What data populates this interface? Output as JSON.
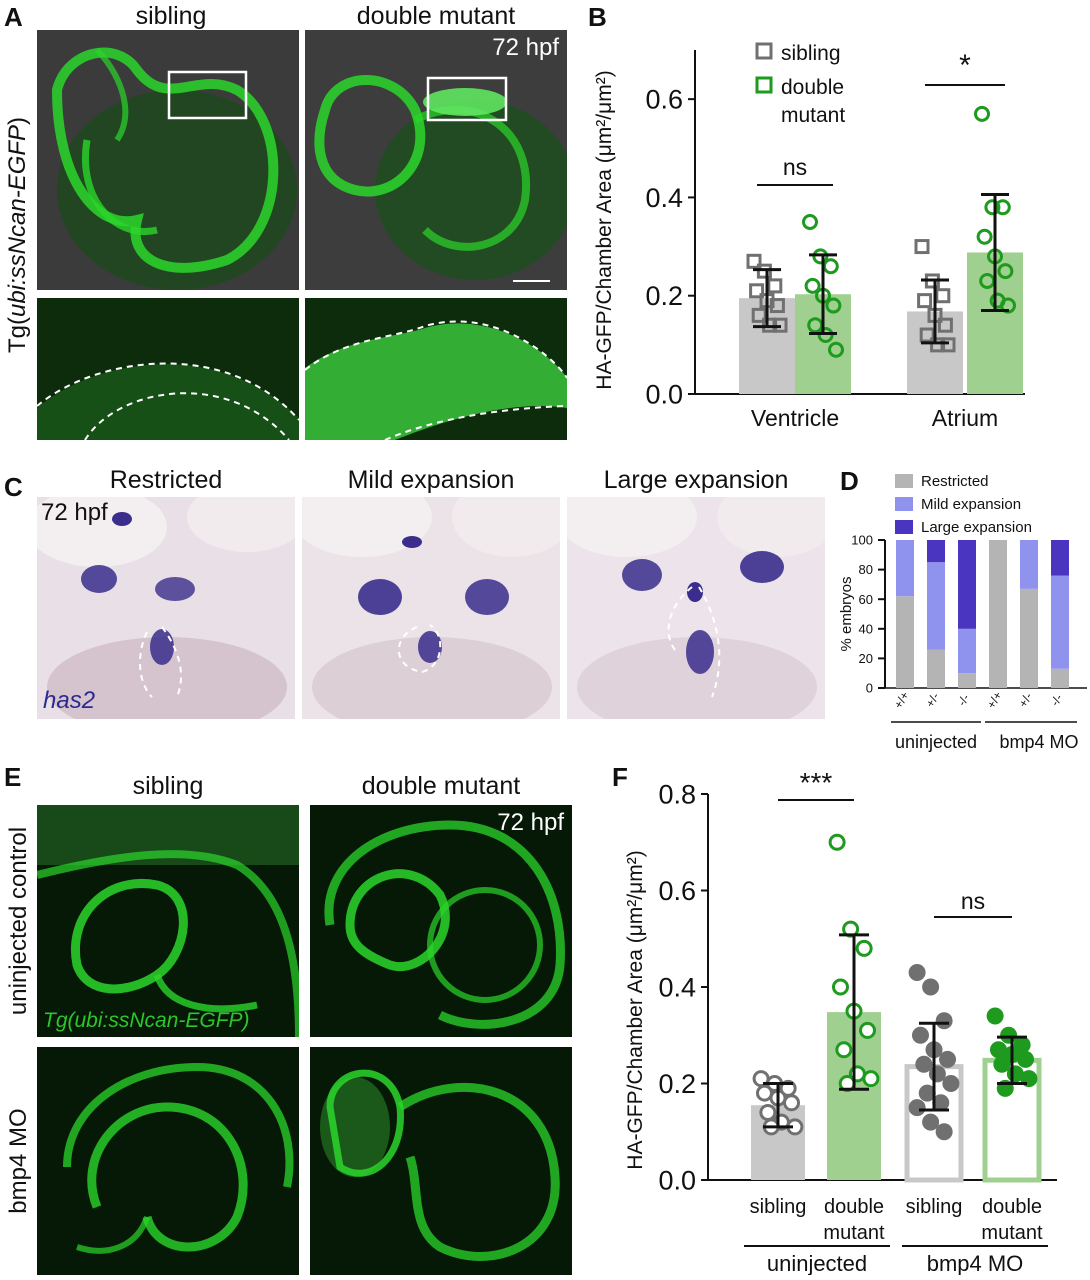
{
  "figure": {
    "panels": {
      "A": {
        "label": "A",
        "col_titles": [
          "sibling",
          "double mutant"
        ],
        "stage": "72 hpf",
        "side_label_prefix": "Tg(",
        "side_label_main": "ubi:ssNcan-EGFP",
        "side_label_suffix": ")"
      },
      "B": {
        "label": "B"
      },
      "C": {
        "label": "C",
        "col_titles": [
          "Restricted",
          "Mild expansion",
          "Large expansion"
        ],
        "stage": "72 hpf",
        "gene": "has2"
      },
      "D": {
        "label": "D"
      },
      "E": {
        "label": "E",
        "col_titles": [
          "sibling",
          "double mutant"
        ],
        "row_titles": [
          "uninjected control",
          "bmp4 MO"
        ],
        "stage": "72 hpf",
        "transgene": "Tg(ubi:ssNcan-EGFP)"
      },
      "F": {
        "label": "F"
      }
    },
    "colors": {
      "grey_bar": "#c8c8c8",
      "green_bar": "#9fd090",
      "grey_point": "#707070",
      "green_point": "#1e9a1e",
      "restricted": "#b4b4b4",
      "mild": "#8f93ee",
      "large": "#4a35c0",
      "gfp": "#2bd62b",
      "ish": "#3a2d8c"
    }
  },
  "chart_data": [
    {
      "id": "B",
      "type": "bar",
      "ylabel": "HA-GFP/Chamber Area (μm²/μm²)",
      "ylim": [
        0.0,
        0.7
      ],
      "yticks": [
        "0.0",
        "0.2",
        "0.4",
        "0.6"
      ],
      "categories": [
        "Ventricle",
        "Atrium"
      ],
      "legend": [
        "sibling",
        "double mutant"
      ],
      "legend_lines": [
        "sibling",
        "double",
        "mutant"
      ],
      "series": [
        {
          "name": "sibling",
          "means": [
            0.195,
            0.168
          ],
          "sd": [
            0.058,
            0.064
          ],
          "points": [
            [
              0.27,
              0.25,
              0.22,
              0.21,
              0.19,
              0.18,
              0.16,
              0.14,
              0.14
            ],
            [
              0.3,
              0.23,
              0.2,
              0.19,
              0.16,
              0.14,
              0.12,
              0.1,
              0.1
            ]
          ]
        },
        {
          "name": "double mutant",
          "means": [
            0.203,
            0.288
          ],
          "sd": [
            0.08,
            0.118
          ],
          "points": [
            [
              0.35,
              0.28,
              0.26,
              0.22,
              0.2,
              0.18,
              0.14,
              0.12,
              0.09
            ],
            [
              0.57,
              0.38,
              0.38,
              0.32,
              0.28,
              0.25,
              0.23,
              0.19,
              0.18
            ]
          ]
        }
      ],
      "significance": [
        "ns",
        "*"
      ]
    },
    {
      "id": "D",
      "type": "bar",
      "stacked": true,
      "ylabel": "% embryos",
      "ylim": [
        0,
        100
      ],
      "yticks": [
        "0",
        "20",
        "40",
        "60",
        "80",
        "100"
      ],
      "categories": [
        "+/+",
        "+/-",
        "-/-",
        "+/+",
        "+/-",
        "-/-"
      ],
      "groups": [
        "uninjected",
        "bmp4 MO"
      ],
      "legend": [
        "Restricted",
        "Mild expansion",
        "Large expansion"
      ],
      "series": [
        {
          "name": "Restricted",
          "values": [
            62,
            26,
            10,
            100,
            67,
            13
          ]
        },
        {
          "name": "Mild expansion",
          "values": [
            38,
            59,
            30,
            0,
            33,
            63
          ]
        },
        {
          "name": "Large expansion",
          "values": [
            0,
            15,
            60,
            0,
            0,
            24
          ]
        }
      ]
    },
    {
      "id": "F",
      "type": "bar",
      "ylabel": "HA-GFP/Chamber Area (μm²/μm²)",
      "ylim": [
        0.0,
        0.8
      ],
      "yticks": [
        "0.0",
        "0.2",
        "0.4",
        "0.6",
        "0.8"
      ],
      "categories": [
        "sibling",
        "double mutant",
        "sibling",
        "double mutant"
      ],
      "category_lines": [
        [
          "sibling"
        ],
        [
          "double",
          "mutant"
        ],
        [
          "sibling"
        ],
        [
          "double",
          "mutant"
        ]
      ],
      "groups": [
        "uninjected",
        "bmp4 MO"
      ],
      "means": [
        0.155,
        0.348,
        0.235,
        0.248
      ],
      "sd": [
        0.045,
        0.16,
        0.09,
        0.048
      ],
      "points": [
        [
          0.21,
          0.2,
          0.19,
          0.18,
          0.17,
          0.16,
          0.14,
          0.12,
          0.11,
          0.11
        ],
        [
          0.7,
          0.52,
          0.48,
          0.4,
          0.35,
          0.31,
          0.27,
          0.22,
          0.21,
          0.2
        ],
        [
          0.43,
          0.4,
          0.33,
          0.3,
          0.27,
          0.25,
          0.24,
          0.22,
          0.2,
          0.18,
          0.16,
          0.15,
          0.12,
          0.1
        ],
        [
          0.34,
          0.3,
          0.28,
          0.27,
          0.26,
          0.25,
          0.24,
          0.22,
          0.21,
          0.19
        ]
      ],
      "significance": [
        "***",
        "ns"
      ]
    }
  ]
}
